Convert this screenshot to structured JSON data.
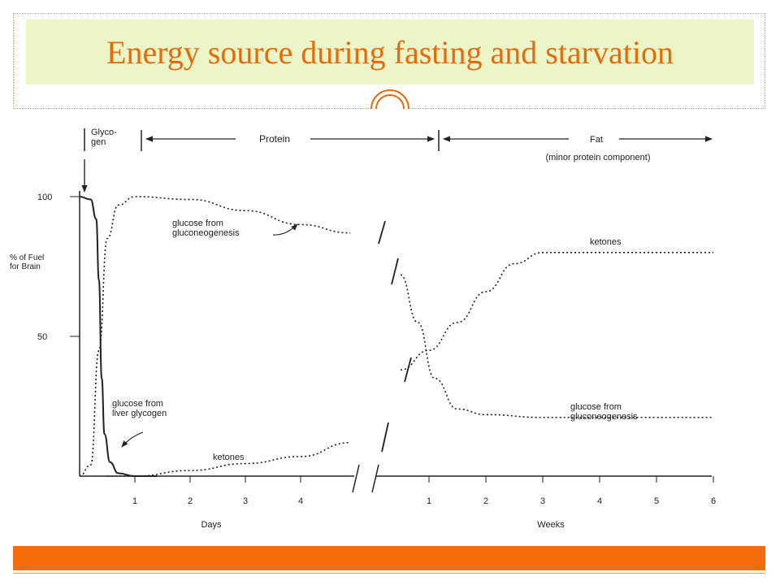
{
  "slide": {
    "title": "Energy source during fasting and starvation"
  },
  "colors": {
    "title_text": "#e46c0a",
    "title_background": "#ecf5c8",
    "accent_bar": "#f66c0a",
    "ink": "#222222"
  },
  "chart_data": {
    "type": "line",
    "ylabel": "% of Fuel\nfor Brain",
    "y_ticks": [
      50,
      100
    ],
    "ylim": [
      0,
      100
    ],
    "x_segments": [
      {
        "unit_label": "Days",
        "ticks": [
          1,
          2,
          3,
          4
        ],
        "range": [
          0,
          4.9
        ]
      },
      {
        "unit_label": "Weeks",
        "ticks": [
          1,
          2,
          3,
          4,
          5,
          6
        ],
        "range": [
          0.15,
          6
        ]
      }
    ],
    "phases": [
      {
        "label": "Glyco-\ngen"
      },
      {
        "label": "Protein"
      },
      {
        "label": "Fat",
        "sublabel": "(minor protein component)"
      }
    ],
    "series": [
      {
        "name": "glucose from liver glycogen",
        "style": "solid",
        "segment": "days",
        "points": [
          [
            0,
            100
          ],
          [
            0.2,
            99
          ],
          [
            0.3,
            92
          ],
          [
            0.35,
            70
          ],
          [
            0.4,
            35
          ],
          [
            0.45,
            15
          ],
          [
            0.55,
            5
          ],
          [
            0.7,
            1
          ],
          [
            1,
            0
          ],
          [
            1.4,
            0
          ]
        ]
      },
      {
        "name": "glucose from gluconeogenesis",
        "style": "dotted",
        "segment": "days",
        "points": [
          [
            0,
            0
          ],
          [
            0.2,
            4
          ],
          [
            0.35,
            45
          ],
          [
            0.5,
            85
          ],
          [
            0.7,
            97
          ],
          [
            1,
            100
          ],
          [
            2,
            99
          ],
          [
            3,
            95
          ],
          [
            4,
            90
          ],
          [
            4.9,
            87
          ]
        ]
      },
      {
        "name": "ketones",
        "style": "dotted",
        "segment": "days",
        "points": [
          [
            0.5,
            0
          ],
          [
            1,
            0
          ],
          [
            2,
            2
          ],
          [
            3,
            4.5
          ],
          [
            4,
            7
          ],
          [
            4.9,
            12
          ]
        ]
      },
      {
        "name": "glucose from gluconeogenesis",
        "style": "dotted",
        "segment": "weeks",
        "points": [
          [
            0.5,
            72
          ],
          [
            0.8,
            55
          ],
          [
            1.1,
            35
          ],
          [
            1.5,
            24
          ],
          [
            2,
            22
          ],
          [
            3,
            21
          ],
          [
            4,
            21
          ],
          [
            5,
            21
          ],
          [
            6,
            21
          ]
        ]
      },
      {
        "name": "ketones",
        "style": "dotted",
        "segment": "weeks",
        "points": [
          [
            0.5,
            38
          ],
          [
            1,
            45
          ],
          [
            1.5,
            55
          ],
          [
            2,
            66
          ],
          [
            2.5,
            76
          ],
          [
            3,
            80
          ],
          [
            4,
            80
          ],
          [
            5,
            80
          ],
          [
            6,
            80
          ]
        ]
      }
    ],
    "annotations": [
      {
        "text": "glucose from\ngluconeogenesis"
      },
      {
        "text": "glucose from\nliver glycogen"
      },
      {
        "text": "ketones"
      },
      {
        "text": "ketones"
      },
      {
        "text": "glucose from\ngluconeogenesis"
      }
    ]
  }
}
